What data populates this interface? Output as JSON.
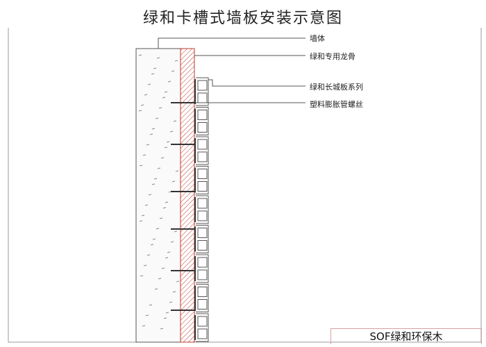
{
  "title": "绿和卡槽式墙板安装示意图",
  "labels": {
    "wall": "墙体",
    "keel": "绿和专用龙骨",
    "panel": "绿和长城板系列",
    "screw": "塑料膨胀管螺丝"
  },
  "brand": "SOF绿和环保木",
  "colors": {
    "hatch": "#c0392b",
    "line": "#555555"
  }
}
